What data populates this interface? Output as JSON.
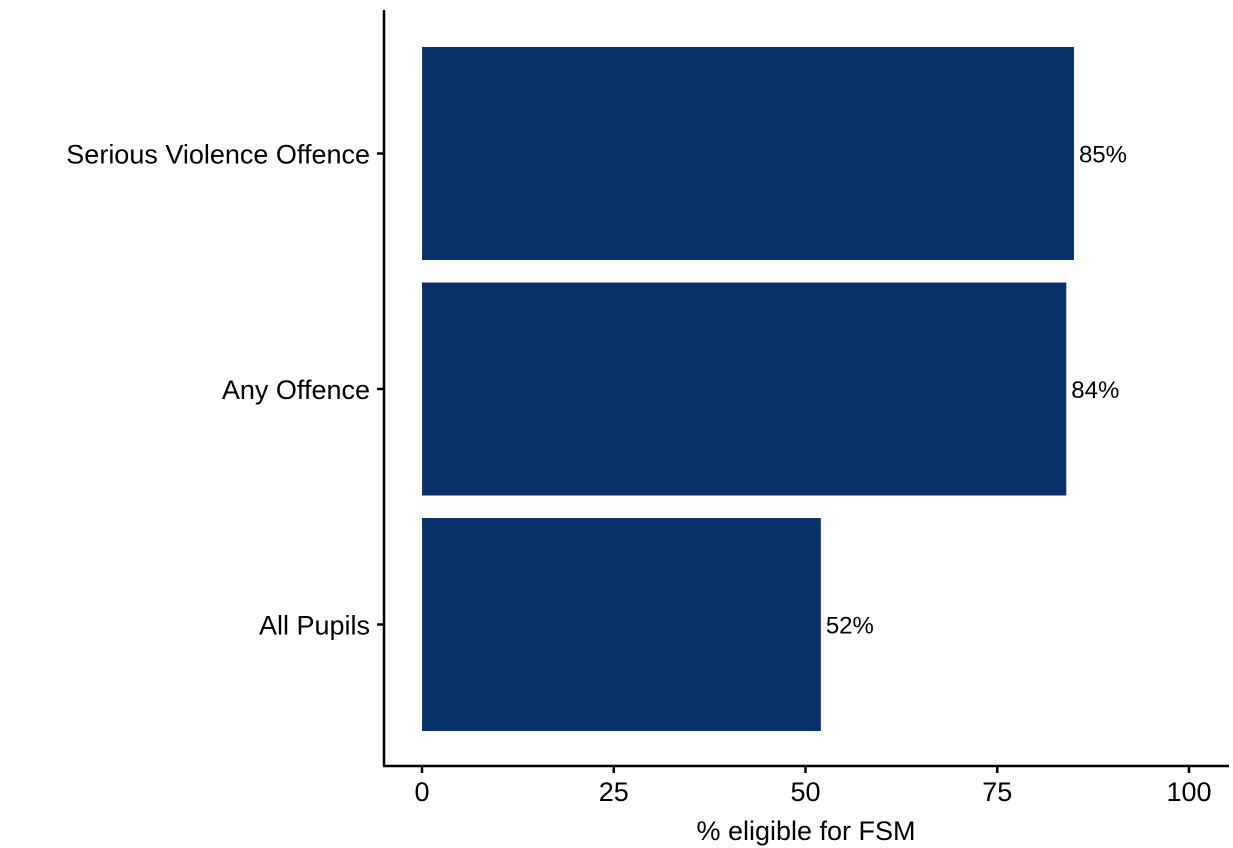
{
  "chart_data": {
    "type": "bar",
    "orientation": "horizontal",
    "categories": [
      "Serious Violence Offence",
      "Any Offence",
      "All Pupils"
    ],
    "values": [
      85,
      84,
      52
    ],
    "data_labels": [
      "85%",
      "84%",
      "52%"
    ],
    "xlabel": "% eligible for FSM",
    "ylabel": "",
    "xlim": [
      0,
      100
    ],
    "xticks": [
      0,
      25,
      50,
      75,
      100
    ],
    "xtick_labels": [
      "0",
      "25",
      "50",
      "75",
      "100"
    ],
    "grid": false,
    "legend": "none",
    "bar_color": "#0b3169"
  }
}
